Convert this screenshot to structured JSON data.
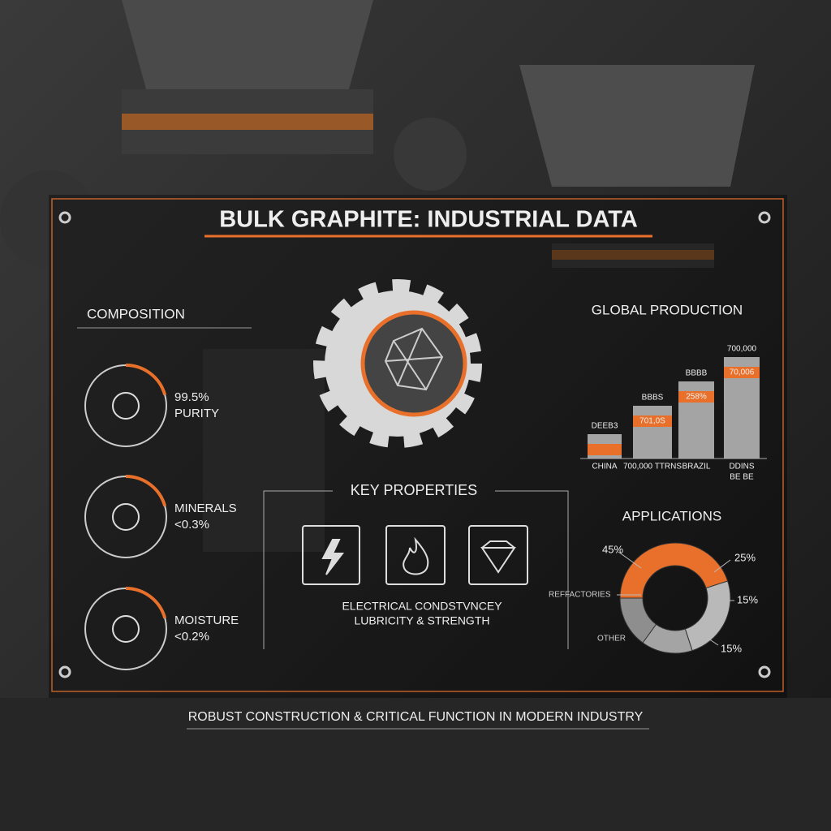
{
  "header": {
    "title": "BULK GRAPHITE: INDUSTRIAL DATA"
  },
  "composition": {
    "title": "COMPOSITION",
    "items": [
      {
        "value": "99.5%",
        "label": "PURITY"
      },
      {
        "value": "MINERALS",
        "label": "<0.3%"
      },
      {
        "value": "MOISTURE",
        "label": "<0.2%"
      }
    ]
  },
  "key_properties": {
    "title": "KEY PROPERTIES",
    "lines": [
      "ELECTRICAL CONDSTVNCEY",
      "LUBRICITY & STRENGTH"
    ]
  },
  "production": {
    "title": "GLOBAL PRODUCTION",
    "bars": [
      {
        "top": "DEEB3",
        "label": "CHINA"
      },
      {
        "top": "BBBS",
        "inner": "701,0S",
        "label": "700,000 TTRNS"
      },
      {
        "top": "BBBB",
        "inner": "258%",
        "label": "BRAZIL"
      },
      {
        "top": "700,000",
        "inner": "70,006",
        "label": "DDINS",
        "sublabel": "BE BE"
      }
    ]
  },
  "applications": {
    "title": "APPLICATIONS",
    "categories": [
      "REFFACTORIES",
      null,
      null,
      "OTHER"
    ],
    "values": [
      45,
      25,
      15,
      15
    ],
    "value_labels": [
      "45%",
      "25%",
      "15%",
      "15%"
    ],
    "colors": [
      "#e8702a",
      "#b9b9b9",
      "#a4a4a4",
      "#8e8e8e"
    ]
  },
  "footer": {
    "text": "ROBUST CONSTRUCTION & CRITICAL FUNCTION IN MODERN INDUSTRY"
  }
}
